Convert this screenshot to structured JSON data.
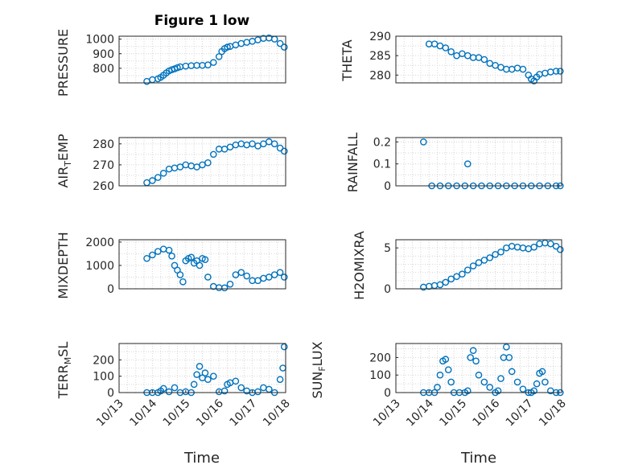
{
  "chart_data": [
    {
      "type": "scatter",
      "title": "Figure 1 low",
      "ylabel": "PRESSURE",
      "xlabel": "",
      "xlim": [
        "10/13",
        "10/18"
      ],
      "ylim": [
        700,
        1020
      ],
      "yticks": [
        800,
        900,
        1000
      ],
      "xticks": [],
      "grid": true,
      "series": [
        {
          "x": [
            "10/13 20:00",
            "10/14 00:00",
            "10/14 04:00",
            "10/14 06:00",
            "10/14 08:00",
            "10/14 10:00",
            "10/14 12:00",
            "10/14 14:00",
            "10/14 16:00",
            "10/14 18:00",
            "10/14 20:00",
            "10/15 00:00",
            "10/15 04:00",
            "10/15 08:00",
            "10/15 12:00",
            "10/15 16:00",
            "10/15 20:00",
            "10/16 00:00",
            "10/16 02:00",
            "10/16 04:00",
            "10/16 06:00",
            "10/16 08:00",
            "10/16 12:00",
            "10/16 16:00",
            "10/16 20:00",
            "10/17 00:00",
            "10/17 04:00",
            "10/17 08:00",
            "10/17 12:00",
            "10/17 16:00",
            "10/17 20:00",
            "10/17 23:00"
          ],
          "values": [
            710,
            722,
            728,
            738,
            752,
            768,
            782,
            790,
            796,
            804,
            810,
            815,
            818,
            820,
            820,
            823,
            840,
            880,
            915,
            935,
            945,
            950,
            960,
            970,
            978,
            985,
            995,
            1005,
            1008,
            1000,
            970,
            945
          ]
        }
      ]
    },
    {
      "type": "scatter",
      "ylabel": "THETA",
      "xlabel": "",
      "xlim": [
        "10/13",
        "10/18"
      ],
      "ylim": [
        278,
        290
      ],
      "yticks": [
        280,
        285,
        290
      ],
      "xticks": [],
      "grid": true,
      "series": [
        {
          "x": [
            "10/14 00:00",
            "10/14 04:00",
            "10/14 08:00",
            "10/14 12:00",
            "10/14 16:00",
            "10/14 20:00",
            "10/15 00:00",
            "10/15 04:00",
            "10/15 08:00",
            "10/15 12:00",
            "10/15 16:00",
            "10/15 20:00",
            "10/16 00:00",
            "10/16 04:00",
            "10/16 08:00",
            "10/16 12:00",
            "10/16 16:00",
            "10/16 20:00",
            "10/17 00:00",
            "10/17 02:00",
            "10/17 04:00",
            "10/17 06:00",
            "10/17 08:00",
            "10/17 12:00",
            "10/17 16:00",
            "10/17 20:00",
            "10/17 23:00"
          ],
          "values": [
            288,
            288,
            287.5,
            287,
            286,
            285,
            285.5,
            285,
            284.5,
            284.5,
            284,
            283,
            282.5,
            282,
            281.5,
            281.5,
            281.8,
            281.5,
            280,
            279,
            278.5,
            279.5,
            280.2,
            280.5,
            280.8,
            281,
            281
          ]
        }
      ]
    },
    {
      "type": "scatter",
      "ylabel": "AIR_TEMP",
      "xlabel": "",
      "xlim": [
        "10/13",
        "10/18"
      ],
      "ylim": [
        260,
        283
      ],
      "yticks": [
        260,
        270,
        280
      ],
      "xticks": [],
      "grid": true,
      "series": [
        {
          "x": [
            "10/13 20:00",
            "10/14 00:00",
            "10/14 04:00",
            "10/14 08:00",
            "10/14 12:00",
            "10/14 16:00",
            "10/14 20:00",
            "10/15 00:00",
            "10/15 04:00",
            "10/15 08:00",
            "10/15 12:00",
            "10/15 16:00",
            "10/15 20:00",
            "10/16 00:00",
            "10/16 04:00",
            "10/16 08:00",
            "10/16 12:00",
            "10/16 16:00",
            "10/16 20:00",
            "10/17 00:00",
            "10/17 04:00",
            "10/17 08:00",
            "10/17 12:00",
            "10/17 16:00",
            "10/17 20:00",
            "10/17 23:00"
          ],
          "values": [
            261.5,
            262.5,
            264,
            266,
            268,
            268.5,
            269,
            270,
            269.5,
            269,
            270,
            271,
            275,
            277.5,
            277.5,
            278.5,
            279.5,
            280,
            279.5,
            280,
            279,
            280,
            281,
            280,
            278,
            276.5
          ]
        }
      ]
    },
    {
      "type": "scatter",
      "ylabel": "RAINFALL",
      "xlabel": "",
      "xlim": [
        "10/13",
        "10/18"
      ],
      "ylim": [
        0,
        0.22
      ],
      "yticks": [
        0,
        0.1,
        0.2
      ],
      "xticks": [],
      "grid": true,
      "series": [
        {
          "x": [
            "10/13 20:00",
            "10/14 02:00",
            "10/14 08:00",
            "10/14 14:00",
            "10/14 20:00",
            "10/15 02:00",
            "10/15 04:00",
            "10/15 08:00",
            "10/15 14:00",
            "10/15 20:00",
            "10/16 02:00",
            "10/16 08:00",
            "10/16 14:00",
            "10/16 20:00",
            "10/17 02:00",
            "10/17 08:00",
            "10/17 14:00",
            "10/17 20:00",
            "10/17 23:00"
          ],
          "values": [
            0.2,
            0,
            0,
            0,
            0,
            0,
            0.1,
            0,
            0,
            0,
            0,
            0,
            0,
            0,
            0,
            0,
            0,
            0,
            0
          ]
        }
      ]
    },
    {
      "type": "scatter",
      "ylabel": "MIXDEPTH",
      "xlabel": "",
      "xlim": [
        "10/13",
        "10/18"
      ],
      "ylim": [
        0,
        2100
      ],
      "yticks": [
        0,
        1000,
        2000
      ],
      "xticks": [],
      "grid": true,
      "series": [
        {
          "x": [
            "10/13 20:00",
            "10/14 00:00",
            "10/14 04:00",
            "10/14 08:00",
            "10/14 12:00",
            "10/14 14:00",
            "10/14 16:00",
            "10/14 18:00",
            "10/14 20:00",
            "10/14 22:00",
            "10/15 00:00",
            "10/15 02:00",
            "10/15 04:00",
            "10/15 06:00",
            "10/15 08:00",
            "10/15 10:00",
            "10/15 12:00",
            "10/15 14:00",
            "10/15 16:00",
            "10/15 20:00",
            "10/16 00:00",
            "10/16 04:00",
            "10/16 08:00",
            "10/16 12:00",
            "10/16 16:00",
            "10/16 20:00",
            "10/17 00:00",
            "10/17 04:00",
            "10/17 08:00",
            "10/17 12:00",
            "10/17 16:00",
            "10/17 20:00",
            "10/17 23:00"
          ],
          "values": [
            1300,
            1450,
            1600,
            1700,
            1650,
            1400,
            1000,
            800,
            600,
            300,
            1200,
            1300,
            1350,
            1100,
            1200,
            1000,
            1300,
            1250,
            500,
            100,
            50,
            40,
            200,
            600,
            700,
            550,
            350,
            350,
            450,
            500,
            600,
            700,
            500
          ]
        }
      ]
    },
    {
      "type": "scatter",
      "ylabel": "H2OMIXRA",
      "xlabel": "",
      "xlim": [
        "10/13",
        "10/18"
      ],
      "ylim": [
        0,
        6
      ],
      "yticks": [
        0,
        5
      ],
      "xticks": [],
      "grid": true,
      "series": [
        {
          "x": [
            "10/13 20:00",
            "10/14 00:00",
            "10/14 04:00",
            "10/14 08:00",
            "10/14 12:00",
            "10/14 16:00",
            "10/14 20:00",
            "10/15 00:00",
            "10/15 04:00",
            "10/15 08:00",
            "10/15 12:00",
            "10/15 16:00",
            "10/15 20:00",
            "10/16 00:00",
            "10/16 04:00",
            "10/16 08:00",
            "10/16 12:00",
            "10/16 16:00",
            "10/16 20:00",
            "10/17 00:00",
            "10/17 04:00",
            "10/17 08:00",
            "10/17 12:00",
            "10/17 16:00",
            "10/17 20:00",
            "10/17 23:00"
          ],
          "values": [
            0.2,
            0.3,
            0.4,
            0.5,
            0.8,
            1.2,
            1.5,
            1.8,
            2.3,
            2.8,
            3.2,
            3.5,
            3.8,
            4.2,
            4.5,
            5.0,
            5.2,
            5.1,
            5.0,
            4.9,
            5.1,
            5.5,
            5.6,
            5.5,
            5.2,
            4.8
          ]
        }
      ]
    },
    {
      "type": "scatter",
      "ylabel": "TERR_MSL",
      "xlabel": "Time",
      "xlim": [
        "10/13",
        "10/18"
      ],
      "ylim": [
        0,
        300
      ],
      "yticks": [
        0,
        100,
        200
      ],
      "xticks": [
        "10/13",
        "10/14",
        "10/15",
        "10/16",
        "10/17",
        "10/18"
      ],
      "grid": true,
      "series": [
        {
          "x": [
            "10/13 20:00",
            "10/14 00:00",
            "10/14 04:00",
            "10/14 06:00",
            "10/14 08:00",
            "10/14 12:00",
            "10/14 16:00",
            "10/14 20:00",
            "10/15 00:00",
            "10/15 04:00",
            "10/15 06:00",
            "10/15 08:00",
            "10/15 10:00",
            "10/15 12:00",
            "10/15 14:00",
            "10/15 16:00",
            "10/15 20:00",
            "10/16 00:00",
            "10/16 04:00",
            "10/16 06:00",
            "10/16 08:00",
            "10/16 12:00",
            "10/16 16:00",
            "10/16 20:00",
            "10/17 00:00",
            "10/17 04:00",
            "10/17 08:00",
            "10/17 12:00",
            "10/17 16:00",
            "10/17 20:00",
            "10/17 22:00",
            "10/17 23:00"
          ],
          "values": [
            0,
            0,
            0,
            10,
            25,
            5,
            30,
            0,
            5,
            0,
            50,
            110,
            160,
            90,
            120,
            80,
            100,
            5,
            10,
            50,
            60,
            70,
            30,
            10,
            0,
            5,
            30,
            20,
            0,
            80,
            150,
            280
          ]
        }
      ]
    },
    {
      "type": "scatter",
      "ylabel": "SUN_FLUX",
      "xlabel": "Time",
      "xlim": [
        "10/13",
        "10/18"
      ],
      "ylim": [
        0,
        280
      ],
      "yticks": [
        0,
        100,
        200
      ],
      "xticks": [
        "10/13",
        "10/14",
        "10/15",
        "10/16",
        "10/17",
        "10/18"
      ],
      "grid": true,
      "series": [
        {
          "x": [
            "10/13 20:00",
            "10/14 00:00",
            "10/14 04:00",
            "10/14 06:00",
            "10/14 08:00",
            "10/14 10:00",
            "10/14 12:00",
            "10/14 14:00",
            "10/14 16:00",
            "10/14 18:00",
            "10/14 22:00",
            "10/15 02:00",
            "10/15 04:00",
            "10/15 06:00",
            "10/15 08:00",
            "10/15 10:00",
            "10/15 12:00",
            "10/15 16:00",
            "10/15 20:00",
            "10/16 00:00",
            "10/16 02:00",
            "10/16 04:00",
            "10/16 06:00",
            "10/16 08:00",
            "10/16 10:00",
            "10/16 12:00",
            "10/16 16:00",
            "10/16 20:00",
            "10/17 00:00",
            "10/17 02:00",
            "10/17 04:00",
            "10/17 06:00",
            "10/17 08:00",
            "10/17 10:00",
            "10/17 12:00",
            "10/17 16:00",
            "10/17 20:00",
            "10/17 23:00"
          ],
          "values": [
            0,
            0,
            0,
            30,
            100,
            180,
            190,
            130,
            60,
            0,
            0,
            0,
            10,
            200,
            240,
            180,
            100,
            60,
            30,
            0,
            10,
            80,
            200,
            260,
            200,
            120,
            60,
            20,
            0,
            0,
            10,
            50,
            110,
            120,
            60,
            10,
            0,
            0
          ]
        }
      ]
    }
  ]
}
